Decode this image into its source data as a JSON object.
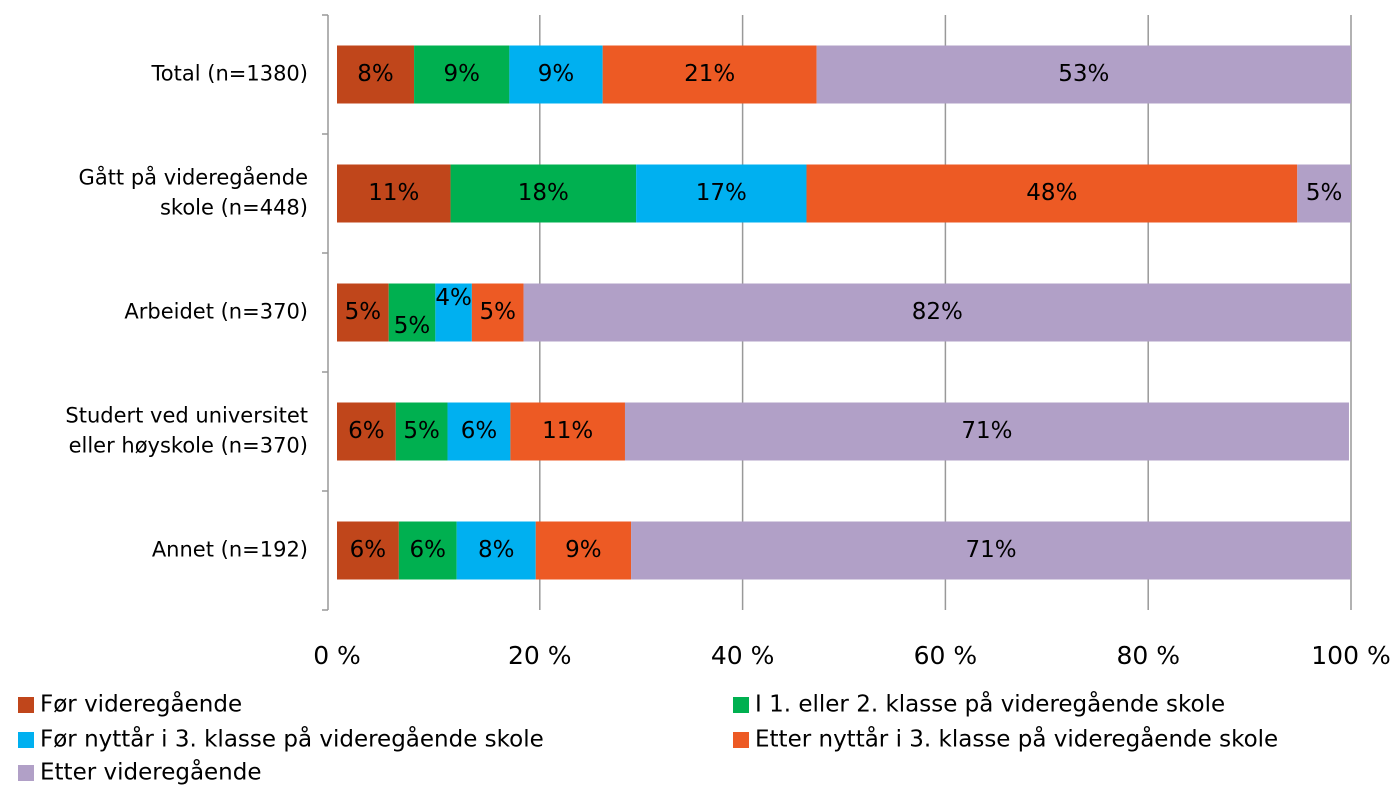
{
  "chart_data": {
    "type": "stacked_barh",
    "categories": [
      "Total (n=1380)",
      "Gått på videregående skole (n=448)",
      "Arbeidet (n=370)",
      "Studert ved universitet eller høyskole (n=370)",
      "Annet (n=192)"
    ],
    "series": [
      {
        "name": "Før videregående",
        "color": "#c0461b",
        "values": [
          7.6,
          11.2,
          5.1,
          5.8,
          6.1
        ],
        "value_labels": [
          "8%",
          "11%",
          "5%",
          "6%",
          "6%"
        ]
      },
      {
        "name": "I 1. eller 2. klasse på videregående skole",
        "color": "#00b050",
        "values": [
          9.4,
          18.3,
          4.6,
          5.1,
          5.7
        ],
        "value_labels": [
          "9%",
          "18%",
          "5%",
          "5%",
          "6%"
        ]
      },
      {
        "name": "Før nyttår i 3. klasse på videregående skole",
        "color": "#00b0f0",
        "values": [
          9.2,
          16.8,
          3.6,
          6.2,
          7.8
        ],
        "value_labels": [
          "9%",
          "17%",
          "4%",
          "6%",
          "8%"
        ]
      },
      {
        "name": "Etter nyttår i 3. klasse på videregående skole",
        "color": "#ed5a24",
        "values": [
          21.1,
          48.4,
          5.1,
          11.3,
          9.4
        ],
        "value_labels": [
          "21%",
          "48%",
          "5%",
          "11%",
          "9%"
        ]
      },
      {
        "name": "Etter videregående",
        "color": "#b1a0c7",
        "values": [
          52.7,
          5.3,
          81.6,
          71.4,
          71.0
        ],
        "value_labels": [
          "53%",
          "5%",
          "82%",
          "71%",
          "71%"
        ]
      }
    ],
    "xlim": [
      0,
      100
    ],
    "xticks": [
      {
        "value": 0,
        "label": "0 %"
      },
      {
        "value": 20,
        "label": "20 %"
      },
      {
        "value": 40,
        "label": "40 %"
      },
      {
        "value": 60,
        "label": "60 %"
      },
      {
        "value": 80,
        "label": "80 %"
      },
      {
        "value": 100,
        "label": "100 %"
      }
    ],
    "grid": true,
    "legend": "bottom"
  }
}
